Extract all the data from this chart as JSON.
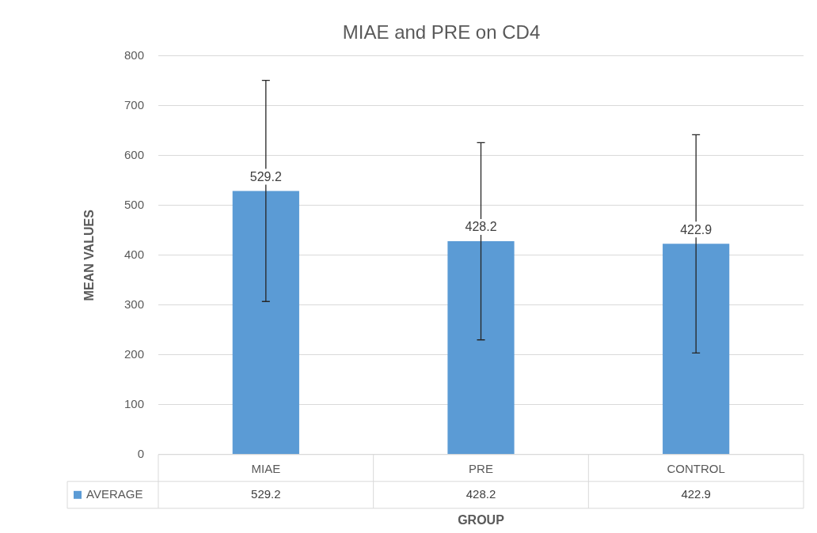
{
  "chart_data": {
    "type": "bar",
    "title": "MIAE and PRE on CD4",
    "xlabel": "GROUP",
    "ylabel": "MEAN VALUES",
    "categories": [
      "MIAE",
      "PRE",
      "CONTROL"
    ],
    "series": [
      {
        "name": "AVERAGE",
        "color": "#5b9bd5",
        "values": [
          529.2,
          428.2,
          422.9
        ],
        "value_labels": [
          "529.2",
          "428.2",
          "422.9"
        ],
        "errors": [
          222,
          198,
          219
        ]
      }
    ],
    "ylim": [
      0,
      800
    ],
    "yticks": [
      0,
      100,
      200,
      300,
      400,
      500,
      600,
      700,
      800
    ],
    "grid": "y",
    "legend": "bottom",
    "annotations": [
      "529.2",
      "428.2",
      "422.9"
    ]
  }
}
